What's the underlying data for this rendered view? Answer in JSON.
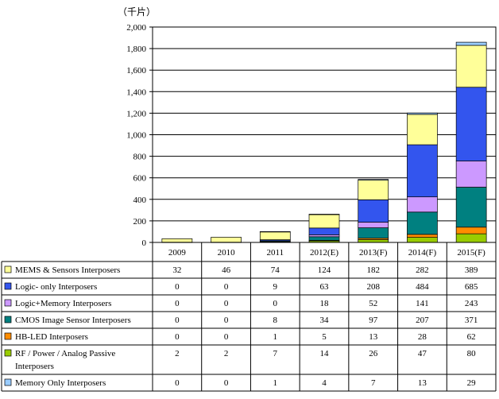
{
  "chart_data": {
    "type": "bar",
    "stacked": true,
    "unit_label": "（千片）",
    "ylim": [
      0,
      2000
    ],
    "yticks": [
      "0",
      "200",
      "400",
      "600",
      "800",
      "1,000",
      "1,200",
      "1,400",
      "1,600",
      "1,800",
      "2,000"
    ],
    "ytick_values": [
      0,
      200,
      400,
      600,
      800,
      1000,
      1200,
      1400,
      1600,
      1800,
      2000
    ],
    "categories": [
      "2009",
      "2010",
      "2011",
      "2012(E)",
      "2013(F)",
      "2014(F)",
      "2015(F)"
    ],
    "legend_placement": "table-left",
    "series": [
      {
        "name": "MEMS & Sensors Interposers",
        "color": "#ffff99",
        "values": [
          32,
          46,
          74,
          124,
          182,
          282,
          389
        ]
      },
      {
        "name": "Logic- only Interposers",
        "color": "#3355ee",
        "values": [
          0,
          0,
          9,
          63,
          208,
          484,
          685
        ]
      },
      {
        "name": "Logic+Memory Interposers",
        "color": "#cc99ff",
        "values": [
          0,
          0,
          0,
          18,
          52,
          141,
          243
        ]
      },
      {
        "name": "CMOS Image Sensor Interposers",
        "color": "#008080",
        "values": [
          0,
          0,
          8,
          34,
          97,
          207,
          371
        ]
      },
      {
        "name": "HB-LED Interposers",
        "color": "#ff8c00",
        "values": [
          0,
          0,
          1,
          5,
          13,
          28,
          62
        ]
      },
      {
        "name": "RF / Power / Analog Passive Interposers",
        "name_lines": [
          "RF / Power / Analog Passive",
          "Interposers"
        ],
        "color": "#99cc00",
        "values": [
          2,
          2,
          7,
          14,
          26,
          47,
          80
        ]
      },
      {
        "name": "Memory Only Interposers",
        "color": "#99ccff",
        "values": [
          0,
          0,
          1,
          4,
          7,
          13,
          29
        ]
      }
    ]
  }
}
